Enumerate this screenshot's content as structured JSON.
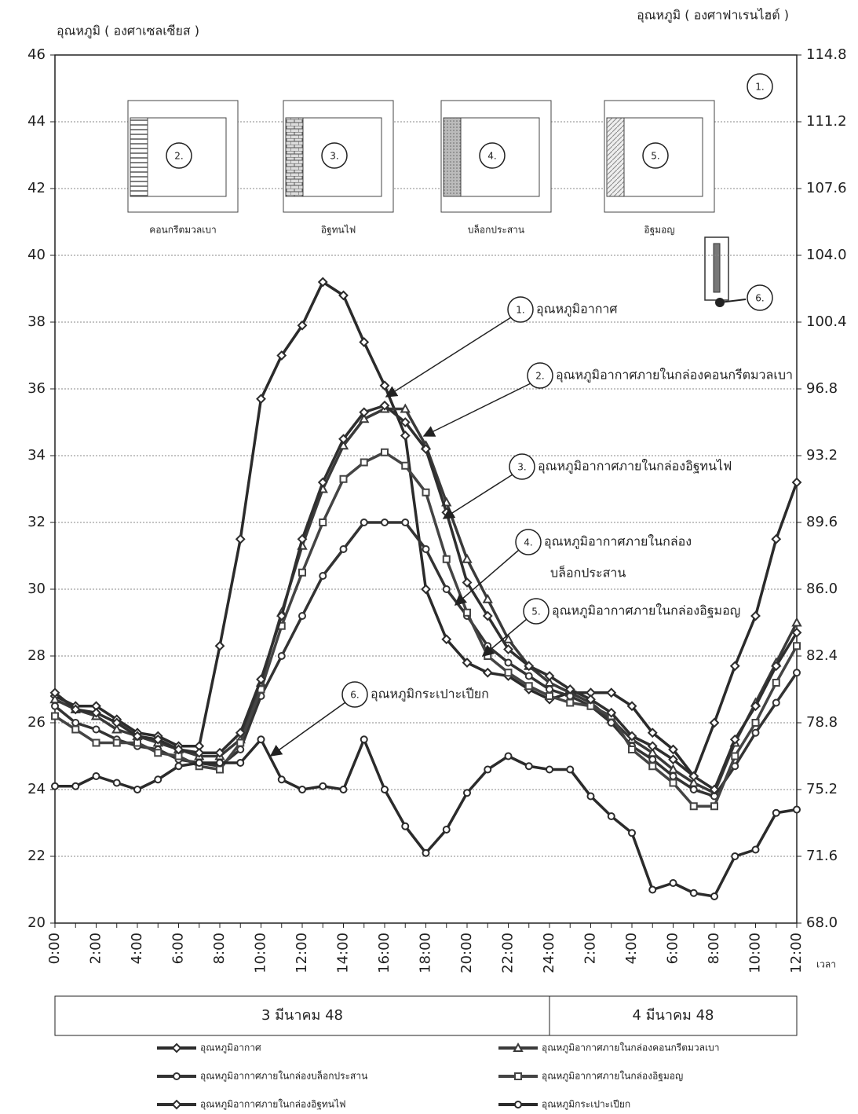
{
  "chart_data": {
    "type": "line",
    "y_label": "อุณหภูมิ ( องศาเซลเซียส )",
    "y2_label": "อุณหภูมิ ( องศาฟาเรนไฮต์ )",
    "x_label": "เวลา",
    "categories": [
      "0:00",
      null,
      "2:00",
      null,
      "4:00",
      null,
      "6:00",
      null,
      "8:00",
      null,
      "10:00",
      null,
      "12:00",
      null,
      "14:00",
      null,
      "16:00",
      null,
      "18:00",
      null,
      "20:00",
      null,
      "22:00",
      null,
      "24:00",
      null,
      "2:00",
      null,
      "4:00",
      null,
      "6:00",
      null,
      "8:00",
      null,
      "10:00",
      null,
      "12:00"
    ],
    "date_labels": [
      "3 มีนาคม 48",
      "4 มีนาคม 48"
    ],
    "ylim": [
      20,
      46
    ],
    "yticks": [
      20,
      22,
      24,
      26,
      28,
      30,
      32,
      34,
      36,
      38,
      40,
      42,
      44,
      46
    ],
    "y2lim": [
      68,
      114.8
    ],
    "y2ticks": [
      {
        "value": 68,
        "label": "68.0"
      },
      71.6,
      75.2,
      78.8,
      82.4,
      {
        "value": 86,
        "label": "86.0"
      },
      89.6,
      93.2,
      96.8,
      100.4,
      {
        "value": 104,
        "label": "104.0"
      },
      107.6,
      111.2,
      114.8
    ],
    "grid": true,
    "series": [
      {
        "name": "อุณหภูมิอากาศ",
        "color": "#2b2b2b",
        "marker": "diamond",
        "values": [
          26.8,
          26.5,
          26.5,
          26.1,
          25.7,
          25.6,
          25.3,
          25.3,
          28.3,
          31.5,
          35.7,
          37.0,
          37.9,
          39.2,
          38.8,
          37.4,
          36.1,
          34.6,
          30.0,
          28.5,
          27.8,
          27.5,
          27.4,
          27.0,
          26.7,
          26.9,
          26.9,
          26.9,
          26.5,
          25.7,
          25.2,
          24.4,
          26.0,
          27.7,
          29.2,
          31.5,
          33.2
        ]
      },
      {
        "name": "อุณหภูมิอากาศภายในกล่องคอนกรีตมวลเบา",
        "color": "#3a3a3a",
        "marker": "triangle",
        "values": [
          26.7,
          26.4,
          26.2,
          25.8,
          25.6,
          25.4,
          25.2,
          25.0,
          25.0,
          25.5,
          27.2,
          29.3,
          31.3,
          33.0,
          34.3,
          35.1,
          35.4,
          35.4,
          34.3,
          32.6,
          30.9,
          29.7,
          28.5,
          27.7,
          27.2,
          26.9,
          26.6,
          26.1,
          25.5,
          25.1,
          24.6,
          24.2,
          23.9,
          25.4,
          26.6,
          27.8,
          29.0
        ]
      },
      {
        "name": "อุณหภูมิอากาศภายในกล่องบล็อกประสาน",
        "color": "#333333",
        "marker": "circle",
        "values": [
          26.5,
          26.0,
          25.8,
          25.5,
          25.3,
          25.2,
          24.9,
          24.8,
          24.7,
          25.2,
          26.8,
          28.0,
          29.2,
          30.4,
          31.2,
          32.0,
          32.0,
          32.0,
          31.2,
          30.0,
          29.2,
          28.3,
          27.8,
          27.4,
          27.0,
          26.8,
          26.5,
          26.0,
          25.3,
          24.9,
          24.4,
          24.0,
          23.8,
          24.7,
          25.7,
          26.6,
          27.5
        ]
      },
      {
        "name": "อุณหภูมิอากาศภายในกล่องอิฐมอญ",
        "color": "#444444",
        "marker": "square",
        "values": [
          26.2,
          25.8,
          25.4,
          25.4,
          25.4,
          25.1,
          25.0,
          24.7,
          24.6,
          25.4,
          27.0,
          28.9,
          30.5,
          32.0,
          33.3,
          33.8,
          34.1,
          33.7,
          32.9,
          30.9,
          29.3,
          28.0,
          27.5,
          27.1,
          26.8,
          26.6,
          26.5,
          26.2,
          25.2,
          24.7,
          24.2,
          23.5,
          23.5,
          25.0,
          26.0,
          27.2,
          28.3
        ]
      },
      {
        "name": "อุณหภูมิอากาศภายในกล่องอิฐทนไฟ",
        "color": "#2f2f2f",
        "marker": "diamond",
        "values": [
          26.9,
          26.4,
          26.3,
          26.0,
          25.6,
          25.5,
          25.2,
          25.1,
          25.1,
          25.7,
          27.3,
          29.2,
          31.5,
          33.2,
          34.5,
          35.3,
          35.5,
          35.0,
          34.2,
          32.3,
          30.2,
          29.2,
          28.2,
          27.7,
          27.4,
          27.0,
          26.7,
          26.3,
          25.6,
          25.3,
          24.9,
          24.4,
          24.0,
          25.5,
          26.5,
          27.7,
          28.7
        ]
      },
      {
        "name": "อุณหภูมิกระเปาะเปียก",
        "color": "#2b2b2b",
        "marker": "circle",
        "values": [
          24.1,
          24.1,
          24.4,
          24.2,
          24.0,
          24.3,
          24.7,
          24.8,
          24.8,
          24.8,
          25.5,
          24.3,
          24.0,
          24.1,
          24.0,
          25.5,
          24.0,
          22.9,
          22.1,
          22.8,
          23.9,
          24.6,
          25.0,
          24.7,
          24.6,
          24.6,
          23.8,
          23.2,
          22.7,
          21.0,
          21.2,
          20.9,
          20.8,
          22.0,
          22.2,
          23.3,
          23.4
        ]
      }
    ],
    "boxes": [
      {
        "number": "2.",
        "label": "คอนกรีตมวลเบา"
      },
      {
        "number": "3.",
        "label": "อิฐทนไฟ"
      },
      {
        "number": "4.",
        "label": "บล็อกประสาน"
      },
      {
        "number": "5.",
        "label": "อิฐมอญ"
      }
    ],
    "corner_numbers": [
      "1.",
      "6."
    ],
    "annotations": [
      {
        "number": "1.",
        "text": [
          "อุณหภูมิอากาศ"
        ]
      },
      {
        "number": "2.",
        "text": [
          "อุณหภูมิอากาศภายในกล่องคอนกรีตมวลเบา"
        ]
      },
      {
        "number": "3.",
        "text": [
          "อุณหภูมิอากาศภายในกล่องอิฐทนไฟ"
        ]
      },
      {
        "number": "4.",
        "text": [
          "อุณหภูมิอากาศภายในกล่อง",
          "บล็อกประสาน"
        ]
      },
      {
        "number": "5.",
        "text": [
          "อุณหภูมิอากาศภายในกล่องอิฐมอญ"
        ]
      },
      {
        "number": "6.",
        "text": [
          "อุณหภูมิกระเปาะเปียก"
        ]
      }
    ]
  }
}
